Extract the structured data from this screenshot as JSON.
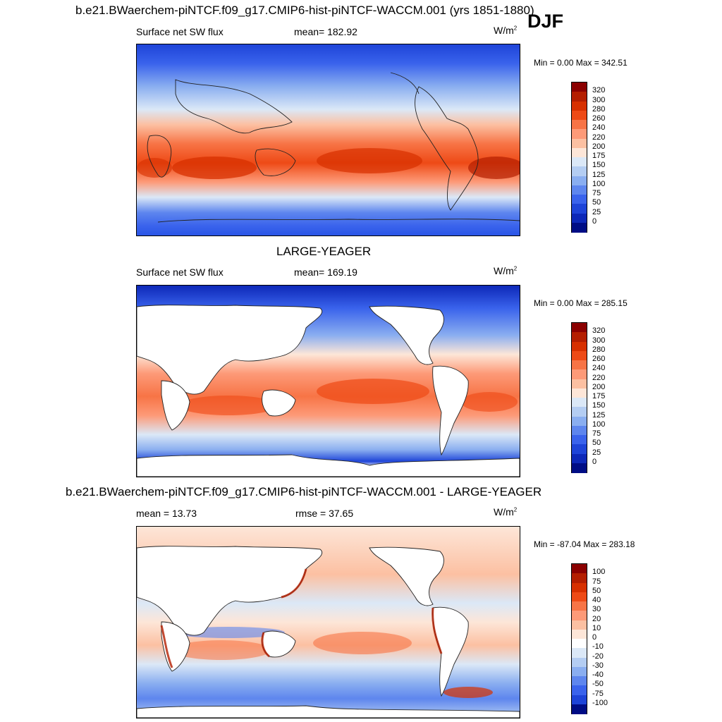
{
  "header": {
    "main_title": "b.e21.BWaerchem-piNTCF.f09_g17.CMIP6-hist-piNTCF-WACCM.001 (yrs 1851-1880)",
    "season": "DJF"
  },
  "panels": [
    {
      "id": "case",
      "variable": "Surface net SW flux",
      "stat": "mean= 182.92",
      "units_base": "W/m",
      "units_exp": "2",
      "minmax": "Min =   0.00 Max = 342.51",
      "kind": "abs",
      "land_masked": false
    },
    {
      "id": "obs",
      "title": "LARGE-YEAGER",
      "variable": "Surface net SW flux",
      "stat": "mean= 169.19",
      "units_base": "W/m",
      "units_exp": "2",
      "minmax": "Min =   0.00 Max = 285.15",
      "kind": "abs",
      "land_masked": true
    },
    {
      "id": "diff",
      "title": "b.e21.BWaerchem-piNTCF.f09_g17.CMIP6-hist-piNTCF-WACCM.001 - LARGE-YEAGER",
      "variable": "mean =  13.73",
      "stat": "rmse =  37.65",
      "units_base": "W/m",
      "units_exp": "2",
      "minmax": "Min = -87.04 Max = 283.18",
      "kind": "diff",
      "land_masked": true
    }
  ],
  "colorbars": {
    "abs": {
      "labels": [
        "320",
        "300",
        "280",
        "260",
        "240",
        "220",
        "200",
        "175",
        "150",
        "125",
        "100",
        "75",
        "50",
        "25",
        "0"
      ],
      "colors": [
        "#8b0000",
        "#b41e00",
        "#d73000",
        "#ee4a16",
        "#f77446",
        "#fd9a78",
        "#fcc0a2",
        "#fde6d8",
        "#dbe8f7",
        "#b4cdf2",
        "#8aaef0",
        "#5e86ee",
        "#3a63ec",
        "#1e44d8",
        "#0d28b8",
        "#000d85"
      ]
    },
    "diff": {
      "labels": [
        "100",
        "75",
        "50",
        "40",
        "30",
        "20",
        "10",
        "0",
        "-10",
        "-20",
        "-30",
        "-40",
        "-50",
        "-75",
        "-100"
      ],
      "colors": [
        "#8b0000",
        "#b41e00",
        "#d73000",
        "#ee4a16",
        "#f77446",
        "#fd9a78",
        "#fcc0a2",
        "#fde6d8",
        "#ffffff",
        "#dbe8f7",
        "#b4cdf2",
        "#8aaef0",
        "#5e86ee",
        "#3a63ec",
        "#1e44d8",
        "#000d85"
      ]
    }
  }
}
